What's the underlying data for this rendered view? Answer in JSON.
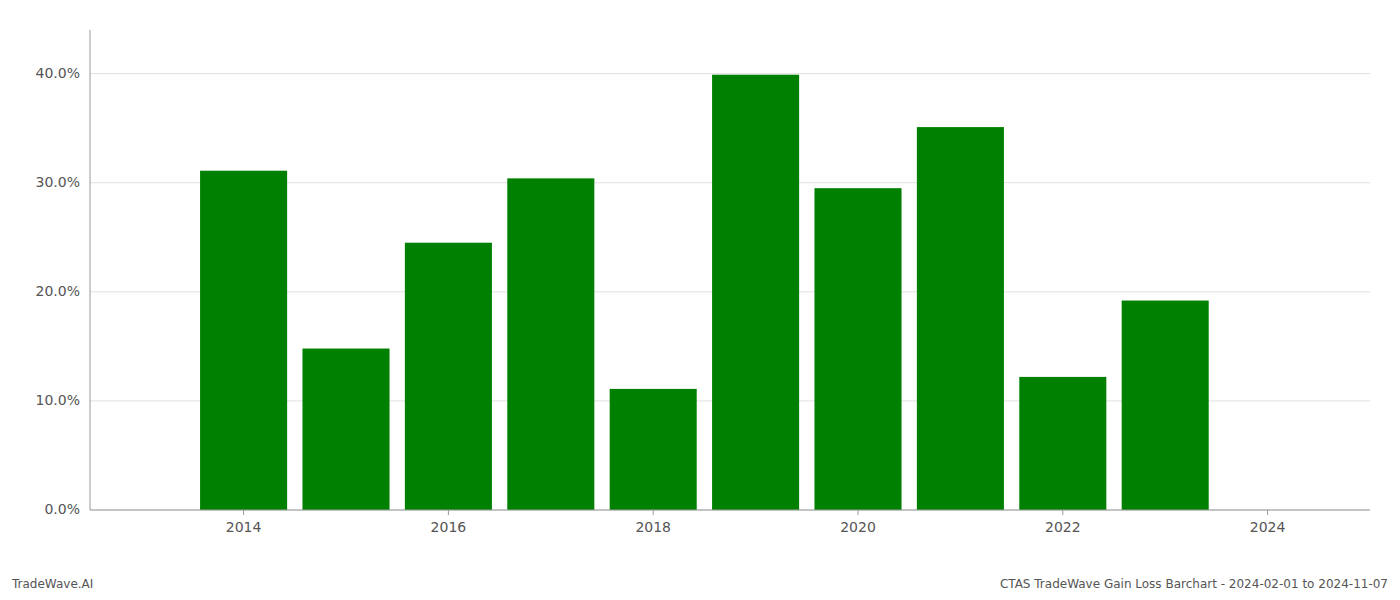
{
  "chart_data": {
    "type": "bar",
    "x": [
      2014,
      2015,
      2016,
      2017,
      2018,
      2019,
      2020,
      2021,
      2022,
      2023
    ],
    "values": [
      0.311,
      0.148,
      0.245,
      0.304,
      0.111,
      0.399,
      0.295,
      0.351,
      0.122,
      0.192
    ],
    "color": "#008000",
    "xlim": [
      2012.5,
      2025.0
    ],
    "xticks": [
      2014,
      2016,
      2018,
      2020,
      2022,
      2024
    ],
    "ylim": [
      0,
      0.44
    ],
    "yticks": [
      {
        "value": 0.0,
        "label": "0.0%"
      },
      {
        "value": 0.1,
        "label": "10.0%"
      },
      {
        "value": 0.2,
        "label": "20.0%"
      },
      {
        "value": 0.3,
        "label": "30.0%"
      },
      {
        "value": 0.4,
        "label": "40.0%"
      }
    ],
    "grid": true,
    "annotations": [
      "TradeWave.AI",
      "CTAS TradeWave Gain Loss Barchart - 2024-02-01 to 2024-11-07"
    ]
  }
}
